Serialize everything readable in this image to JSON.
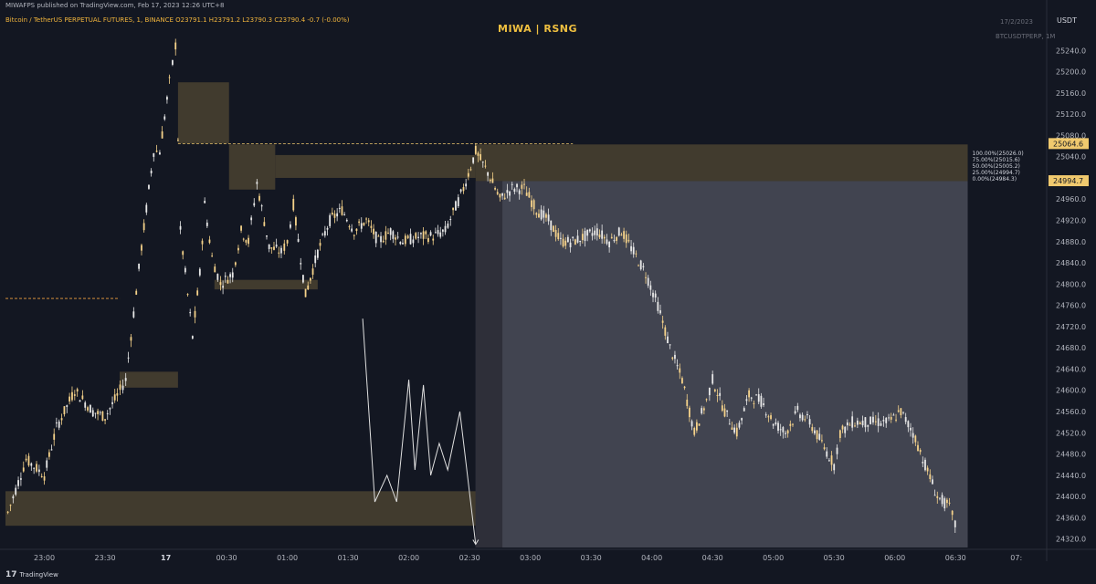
{
  "header": {
    "publisher": "MIWAFPS published on TradingView.com, Feb 17, 2023 12:26 UTC+8",
    "symbol_line": "Bitcoin / TetherUS PERPETUAL FUTURES, 1, BINANCE  O23791.1  H23791.2  L23790.3  C23790.4  -0.7 (-0.00%)",
    "watermark": "MIWA | RSNG",
    "date_stamp": "17/2/2023",
    "ticker_stamp": "BTCUSDTPERP, 1M",
    "currency": "USDT"
  },
  "footer": {
    "brand": "TradingView",
    "logo_glyph": "17"
  },
  "colors": {
    "background": "#131722",
    "candle": "#f5d28a",
    "zone": "#4a4230",
    "projection": "#4a4c58",
    "axis_text": "#b2b5be",
    "price_badge": "#f0c96e"
  },
  "chart_data": {
    "type": "line",
    "title": "",
    "xlabel": "",
    "ylabel": "",
    "x_ticks": [
      "23:00",
      "23:30",
      "17",
      "00:30",
      "01:00",
      "01:30",
      "02:00",
      "02:30",
      "03:00",
      "03:30",
      "04:00",
      "04:30",
      "05:00",
      "05:30",
      "06:00",
      "06:30",
      "07:"
    ],
    "x_tick_hours": [
      -1.0,
      -0.5,
      0.0,
      0.5,
      1.0,
      1.5,
      2.0,
      2.5,
      3.0,
      3.5,
      4.0,
      4.5,
      5.0,
      5.5,
      6.0,
      6.5,
      7.0
    ],
    "xlim_hours": [
      -1.32,
      7.25
    ],
    "ylim": [
      24304,
      25280
    ],
    "y_ticks": [
      25240.0,
      25200.0,
      25160.0,
      25120.0,
      25080.0,
      25040.0,
      24960.0,
      24920.0,
      24880.0,
      24840.0,
      24800.0,
      24760.0,
      24720.0,
      24680.0,
      24640.0,
      24600.0,
      24560.0,
      24520.0,
      24480.0,
      24440.0,
      24400.0,
      24360.0,
      24320.0
    ],
    "y_tick_labels": [
      "25240.0",
      "25200.0",
      "25160.0",
      "25120.0",
      "25080.0",
      "25040.0",
      "24960.0",
      "24920.0",
      "24880.0",
      "24840.0",
      "24800.0",
      "24760.0",
      "24720.0",
      "24680.0",
      "24640.0",
      "24600.0",
      "24560.0",
      "24520.0",
      "24480.0",
      "24440.0",
      "24400.0",
      "24360.0",
      "24320.0"
    ],
    "price_badges": [
      {
        "label": "25064.6",
        "value": 25064.6
      },
      {
        "label": "24994.7",
        "value": 24994.7
      }
    ],
    "price_series_hours": [
      -1.3,
      -1.15,
      -1.0,
      -0.9,
      -0.75,
      -0.6,
      -0.5,
      -0.4,
      -0.33,
      -0.2,
      -0.1,
      -0.05,
      0.03,
      0.08,
      0.12,
      0.18,
      0.22,
      0.28,
      0.32,
      0.38,
      0.45,
      0.55,
      0.62,
      0.68,
      0.75,
      0.85,
      0.95,
      1.0,
      1.05,
      1.15,
      1.25,
      1.35,
      1.45,
      1.55,
      1.65,
      1.75,
      1.85,
      1.95,
      2.1,
      2.2,
      2.3,
      2.45,
      2.55,
      2.65,
      2.75,
      2.85,
      2.95,
      3.05,
      3.15,
      3.25,
      3.35,
      3.45,
      3.55,
      3.65,
      3.75,
      3.85,
      3.95,
      4.05,
      4.15,
      4.25,
      4.35,
      4.45,
      4.5,
      4.6,
      4.7,
      4.8,
      4.9,
      5.0,
      5.1,
      5.2,
      5.3,
      5.4,
      5.5,
      5.55,
      5.65,
      5.8,
      5.95,
      6.05,
      6.15,
      6.25,
      6.35,
      6.45,
      6.52
    ],
    "price_series_values": [
      24370,
      24470,
      24440,
      24530,
      24600,
      24560,
      24550,
      24590,
      24620,
      24870,
      25050,
      25050,
      25180,
      25250,
      24900,
      24780,
      24700,
      24820,
      24950,
      24850,
      24800,
      24820,
      24900,
      24880,
      24990,
      24870,
      24860,
      24880,
      24950,
      24780,
      24860,
      24920,
      24940,
      24900,
      24920,
      24880,
      24900,
      24880,
      24890,
      24890,
      24900,
      24980,
      25050,
      25010,
      24960,
      24980,
      24980,
      24940,
      24920,
      24880,
      24880,
      24890,
      24900,
      24880,
      24900,
      24860,
      24820,
      24760,
      24680,
      24620,
      24520,
      24580,
      24620,
      24560,
      24520,
      24590,
      24580,
      24540,
      24520,
      24560,
      24540,
      24500,
      24460,
      24520,
      24540,
      24540,
      24540,
      24560,
      24520,
      24460,
      24400,
      24380,
      24330
    ],
    "annotations": {
      "fib_levels": [
        "100.00%(25026.0)",
        "75.00%(25015.6)",
        "50.00%(25005.2)",
        "25.00%(24994.7)",
        "0.00%(24984.3)"
      ],
      "fib_hours": 6.6,
      "fib_top_value": 25043
    }
  }
}
